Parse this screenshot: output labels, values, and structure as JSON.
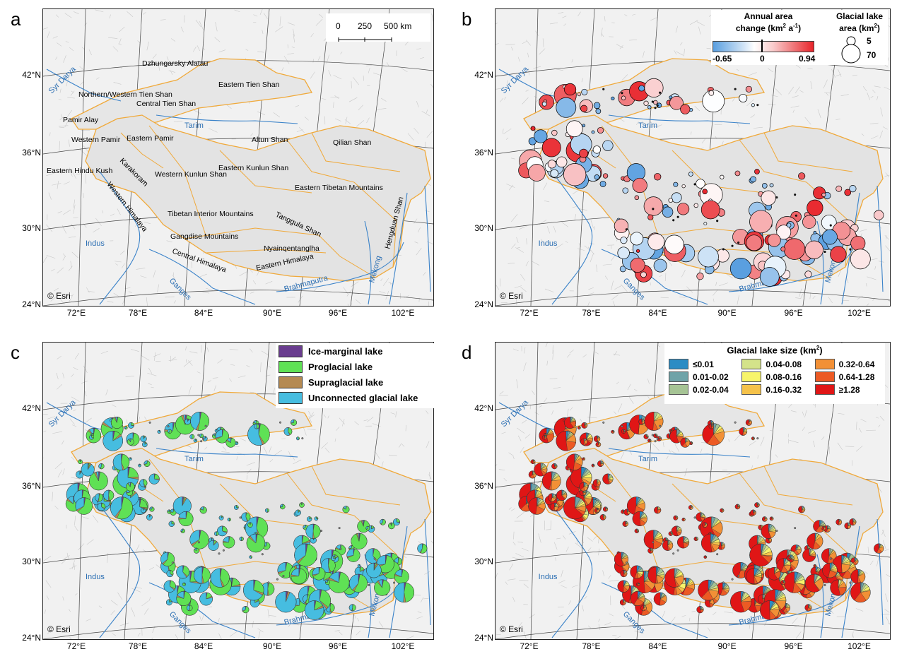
{
  "panels": [
    {
      "letter": "a"
    },
    {
      "letter": "b"
    },
    {
      "letter": "c"
    },
    {
      "letter": "d"
    }
  ],
  "lat_labels": [
    "42°N",
    "36°N",
    "30°N",
    "24°N"
  ],
  "lon_labels": [
    "72°E",
    "78°E",
    "84°E",
    "90°E",
    "96°E",
    "102°E"
  ],
  "attribution": "© Esri",
  "scale_bar": {
    "ticks": [
      "0",
      "250",
      "500 km"
    ]
  },
  "region_names": [
    "Dzhungarsky Alatau",
    "Eastern Tien Shan",
    "Northern/Western Tien Shan",
    "Central Tien Shan",
    "Pamir Alay",
    "Western Pamir",
    "Eastern Pamir",
    "Altun Shan",
    "Qilian Shan",
    "Eastern Hindu Kush",
    "Karakoram",
    "Western Kunlun Shan",
    "Eastern Kunlun Shan",
    "Eastern Tibetan Mountains",
    "Western Himalaya",
    "Tibetan Interior Mountains",
    "Tanggula Shan",
    "Gangdise Mountains",
    "Hengduan Shan",
    "Nyainqentanglha",
    "Central Himalaya",
    "Eastern Himalaya"
  ],
  "rivers": [
    "Syr Darya",
    "Tarim",
    "Indus",
    "Ganges",
    "Brahmaputra",
    "Mekong"
  ],
  "legend_b": {
    "change_title_1": "Annual area",
    "change_title_2": "change (km",
    "change_title_sup1": "2",
    "change_title_3": " a",
    "change_title_sup2": "-1",
    "change_title_4": ")",
    "change_min": "-0.65",
    "change_mid": "0",
    "change_max": "0.94",
    "area_title_1": "Glacial lake",
    "area_title_2": "area (km",
    "area_title_sup": "2",
    "area_title_3": ")",
    "area_small": "5",
    "area_large": "70",
    "colors": {
      "negative": "#5a9fe0",
      "zero": "#ffffff",
      "positive": "#e8242a"
    }
  },
  "legend_c": {
    "items": [
      {
        "label": "Ice-marginal lake",
        "color": "#6a3d8f"
      },
      {
        "label": "Proglacial lake",
        "color": "#5fe155"
      },
      {
        "label": "Supraglacial lake",
        "color": "#b58a52"
      },
      {
        "label": "Unconnected glacial lake",
        "color": "#46bde0"
      }
    ]
  },
  "legend_d": {
    "title": "Glacial lake size (km",
    "title_sup": "2",
    "title_end": ")",
    "items": [
      {
        "label": "≤0.01",
        "color": "#2b8cc4"
      },
      {
        "label": "0.01-0.02",
        "color": "#6fa3a8"
      },
      {
        "label": "0.02-0.04",
        "color": "#a6c495"
      },
      {
        "label": "0.04-0.08",
        "color": "#d4e38a"
      },
      {
        "label": "0.08-0.16",
        "color": "#f7f46a"
      },
      {
        "label": "0.16-0.32",
        "color": "#f5c24a"
      },
      {
        "label": "0.32-0.64",
        "color": "#f29036"
      },
      {
        "label": "0.64-1.28",
        "color": "#ec5a24"
      },
      {
        "label": "≥1.28",
        "color": "#e01616"
      }
    ]
  }
}
